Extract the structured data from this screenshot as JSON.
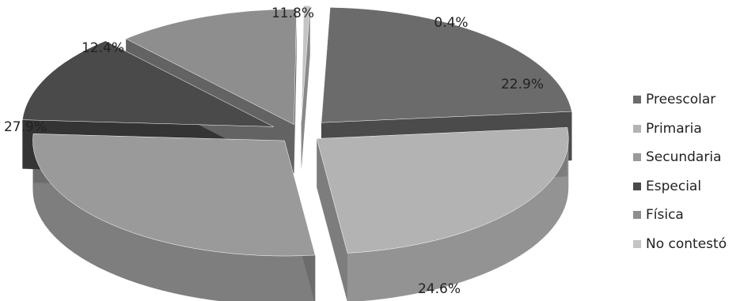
{
  "chart_data": {
    "type": "pie",
    "style": "3d-exploded",
    "labels": [
      "Preescolar",
      "Primaria",
      "Secundaria",
      "Especial",
      "Física",
      "No contestó"
    ],
    "values": [
      22.9,
      24.6,
      27.9,
      12.4,
      11.8,
      0.4
    ],
    "value_labels": [
      "22.9%",
      "24.6%",
      "27.9%",
      "12.4%",
      "11.8%",
      "0.4%"
    ],
    "colors": [
      "#6b6b6b",
      "#b3b3b3",
      "#9a9a9a",
      "#4a4a4a",
      "#8e8e8e",
      "#c4c4c4"
    ],
    "legend_position": "right",
    "title": ""
  }
}
